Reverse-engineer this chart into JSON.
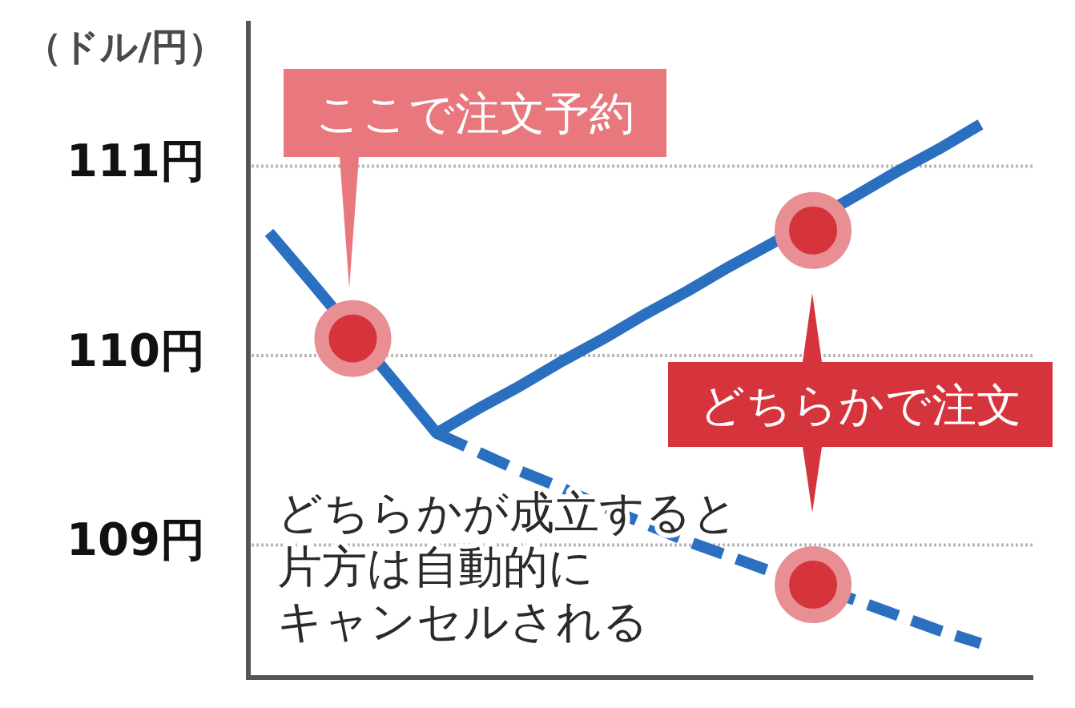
{
  "chart_data": {
    "type": "line",
    "ylabel": "（ドル/円）",
    "categories": [
      null,
      null,
      null,
      null,
      null,
      null,
      null,
      null,
      null,
      null,
      null,
      null,
      null,
      null,
      null,
      null,
      null,
      null
    ],
    "ylim": [
      108.3,
      111.75
    ],
    "yticks": [
      {
        "value": 109,
        "label": "109円"
      },
      {
        "value": 110,
        "label": "110円"
      },
      {
        "value": 111,
        "label": "111円"
      }
    ],
    "grid": "y",
    "tick_labels": "y",
    "annotations": [
      "ここで注文予約",
      "どちらかで注文",
      "どちらかが成立すると",
      "片方は自動的に",
      "キャンセルされる"
    ],
    "series": [
      {
        "color": "#2b70c0",
        "line_style": "solid",
        "values": [
          110.65,
          110.39,
          null,
          109.86,
          109.59,
          109.72,
          109.84,
          109.97,
          110.09,
          110.22,
          110.34,
          110.47,
          110.59,
          null,
          110.84,
          110.97,
          111.09,
          111.22
        ]
      },
      {
        "color": "#2b70c0",
        "line_style": "dashed",
        "values": [
          null,
          null,
          null,
          null,
          109.59,
          109.49,
          109.39,
          109.3,
          109.2,
          109.11,
          109.02,
          108.94,
          108.86,
          null,
          108.71,
          108.63,
          108.55,
          108.48
        ]
      },
      {
        "type": "scatter",
        "color": "#d6343c",
        "marker": "circle",
        "values": [
          null,
          null,
          110.09,
          null,
          null,
          null,
          null,
          null,
          null,
          null,
          null,
          null,
          null,
          110.66,
          null,
          null,
          null,
          null
        ]
      },
      {
        "type": "scatter",
        "color": "#d6343c",
        "marker": "circle",
        "values": [
          null,
          null,
          null,
          null,
          null,
          null,
          null,
          null,
          null,
          null,
          null,
          null,
          null,
          108.79,
          null,
          null,
          null,
          null
        ]
      }
    ]
  }
}
